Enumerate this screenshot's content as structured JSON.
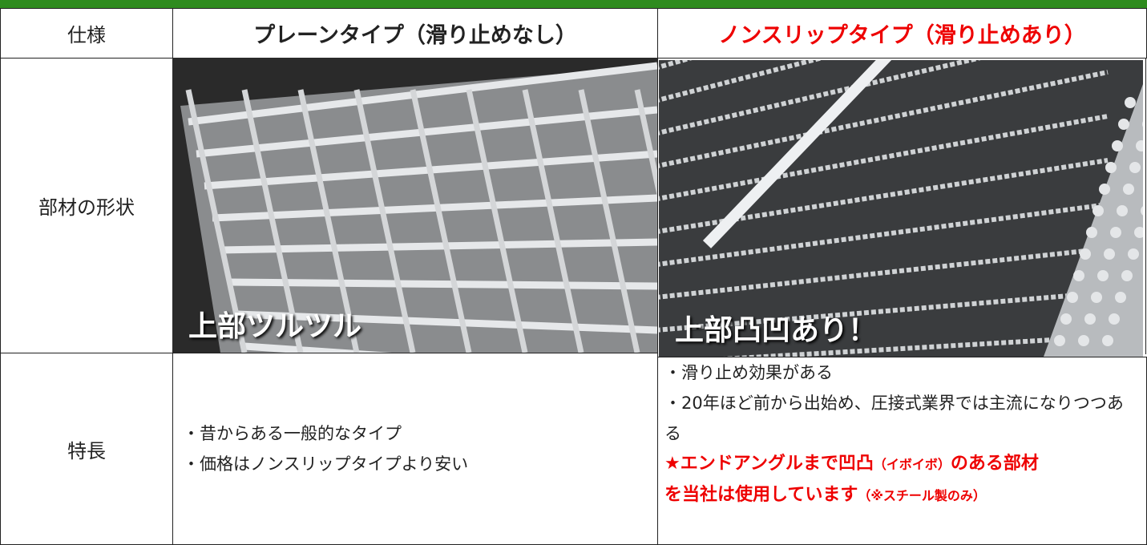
{
  "table": {
    "header": [
      "仕様",
      "プレーンタイプ（滑り止めなし）",
      "ノンスリップタイプ（滑り止めあり）"
    ],
    "shape_row": {
      "label": "部材の形状",
      "plain_caption": "上部ツルツル",
      "nonslip_caption": "上部凸凹あり！"
    },
    "feature_row": {
      "label": "特長",
      "plain": [
        "・昔からある一般的なタイプ",
        "・価格はノンスリップタイプより安い"
      ],
      "nonslip": [
        "・滑り止め効果がある",
        "・20年ほど前から出始め、圧接式業界では主流になりつつある"
      ],
      "note": [
        [
          "★エンドアングルまで凹凸",
          "（イボイボ）",
          "のある部材"
        ],
        [
          "を当社は使用しています",
          "（※スチール製のみ）"
        ]
      ]
    }
  }
}
